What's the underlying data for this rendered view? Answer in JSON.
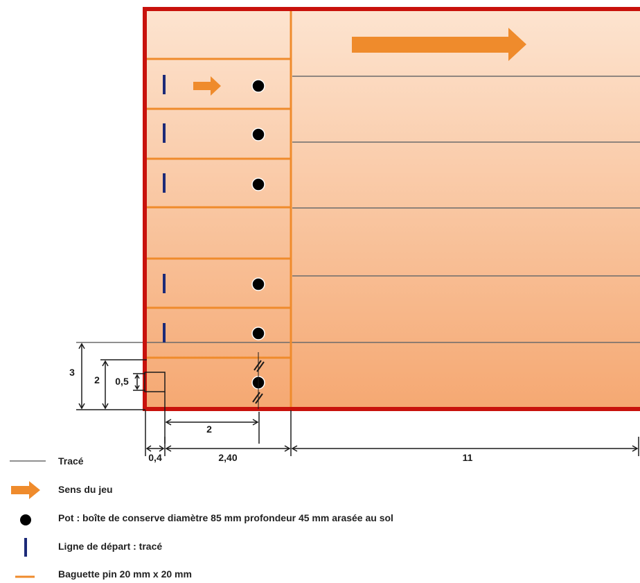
{
  "colors": {
    "frame": "#c8120c",
    "batten": "#ef8b2c",
    "fill_light": "#fde4d0",
    "fill_dark": "#f5a872",
    "trace": "#6b6b6b",
    "hole": "#000000",
    "start_line": "#1c2a78",
    "arrow": "#ef8b2c",
    "dimension": "#1a1a1a"
  },
  "dimensions": {
    "height_total": "3",
    "height_inner": "2",
    "height_small": "0,5",
    "width_edge": "0,4",
    "width_lane": "2,40",
    "width_play": "11",
    "hole_offset": "2"
  },
  "legend": [
    {
      "icon": "trace-line-icon",
      "label": "Tracé"
    },
    {
      "icon": "arrow-icon",
      "label": "Sens du jeu"
    },
    {
      "icon": "hole-dot-icon",
      "label": "Pot : boîte de conserve diamètre 85 mm profondeur 45 mm arasée au sol"
    },
    {
      "icon": "start-line-icon",
      "label": "Ligne de départ : tracé"
    },
    {
      "icon": "batten-icon",
      "label": "Baguette pin 20 mm x 20 mm"
    }
  ]
}
